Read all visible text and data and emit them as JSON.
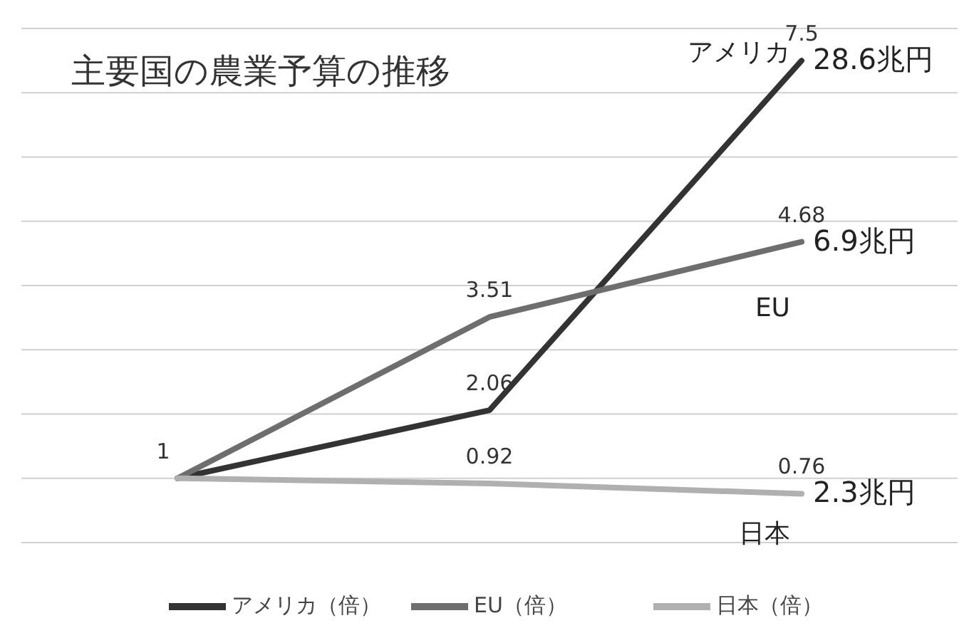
{
  "chart_data": {
    "type": "line",
    "title": "主要国の農業予算の推移",
    "categories": [
      null,
      null,
      null
    ],
    "series": [
      {
        "name": "アメリカ（倍）",
        "color": "#333333",
        "values": [
          1,
          2.06,
          7.5
        ],
        "value_labels": [
          "1",
          "2.06",
          "7.5"
        ]
      },
      {
        "name": "EU（倍）",
        "color": "#6e6e6e",
        "values": [
          1,
          3.51,
          4.68
        ],
        "value_labels": [
          null,
          "3.51",
          "4.68"
        ]
      },
      {
        "name": "日本（倍）",
        "color": "#b0b0b0",
        "values": [
          1,
          0.92,
          0.76
        ],
        "value_labels": [
          null,
          "0.92",
          "0.76"
        ]
      }
    ],
    "ylim": [
      0,
      8
    ],
    "yticks": [
      {
        "value": 0,
        "label": null
      },
      {
        "value": 1,
        "label": null
      },
      {
        "value": 2,
        "label": null
      },
      {
        "value": 3,
        "label": null
      },
      {
        "value": 4,
        "label": null
      },
      {
        "value": 5,
        "label": null
      },
      {
        "value": 6,
        "label": null
      },
      {
        "value": 7,
        "label": null
      },
      {
        "value": 8,
        "label": null
      }
    ],
    "grid": "y",
    "legend": "bottom",
    "marker": "none",
    "line_style": "solid",
    "annotations": [
      "アメリカ",
      "28.6兆円",
      "EU",
      "6.9兆円",
      "日本",
      "2.3兆円"
    ]
  }
}
